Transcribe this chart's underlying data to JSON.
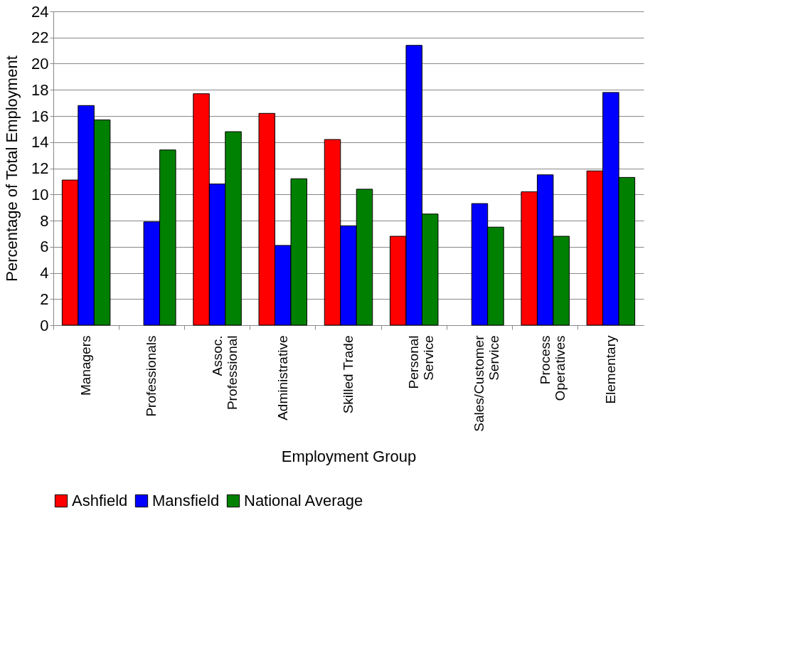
{
  "chart_data": {
    "type": "bar",
    "xlabel": "Employment Group",
    "ylabel": "Percentage of Total Employment",
    "categories": [
      "Managers",
      "Professionals",
      "Assoc. Professional",
      "Administrative",
      "Skilled Trade",
      "Personal Service",
      "Sales/Customer Service",
      "Process Operatives",
      "Elementary"
    ],
    "series": [
      {
        "name": "Ashfield",
        "color": "#ff0000",
        "values": [
          11.1,
          null,
          17.7,
          16.2,
          14.2,
          6.8,
          null,
          10.2,
          11.8
        ]
      },
      {
        "name": "Mansfield",
        "color": "#0000ff",
        "values": [
          16.8,
          7.9,
          10.8,
          6.1,
          7.6,
          21.4,
          9.3,
          11.5,
          17.8
        ]
      },
      {
        "name": "National Average",
        "color": "#008000",
        "values": [
          15.7,
          13.4,
          14.8,
          11.2,
          10.4,
          8.5,
          7.5,
          6.8,
          11.3
        ]
      }
    ],
    "ylim": [
      0,
      24
    ],
    "yticks": [
      0,
      2,
      4,
      6,
      8,
      10,
      12,
      14,
      16,
      18,
      20,
      22,
      24
    ],
    "grid": "y",
    "legend": "bottom"
  }
}
